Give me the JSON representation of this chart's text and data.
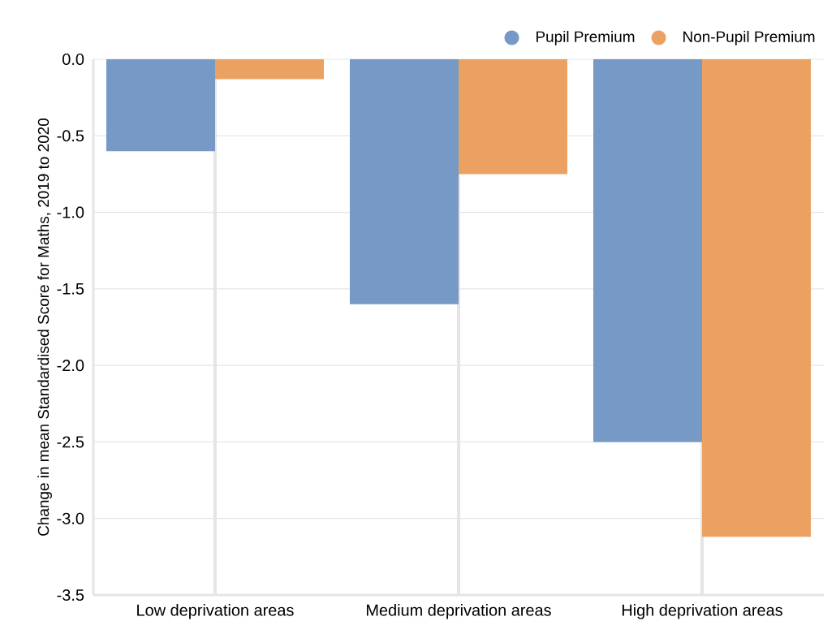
{
  "chart_data": {
    "type": "bar",
    "ylabel": "Change in mean Standardised Score for Maths, 2019 to 2020",
    "categories": [
      "Low deprivation areas",
      "Medium deprivation areas",
      "High deprivation areas"
    ],
    "series": [
      {
        "name": "Pupil Premium",
        "color": "#7799c6",
        "values": [
          -0.6,
          -1.6,
          -2.5
        ]
      },
      {
        "name": "Non-Pupil Premium",
        "color": "#eba162",
        "values": [
          -0.13,
          -0.75,
          -3.12
        ]
      }
    ],
    "ylim": [
      -3.5,
      0
    ],
    "yticks": [
      {
        "value": -3.5,
        "label": "-3.5"
      },
      {
        "value": -3.0,
        "label": "-3.0"
      },
      {
        "value": -2.5,
        "label": "-2.5"
      },
      {
        "value": -2.0,
        "label": "-2.0"
      },
      {
        "value": -1.5,
        "label": "-1.5"
      },
      {
        "value": -1.0,
        "label": "-1.0"
      },
      {
        "value": -0.5,
        "label": "-0.5"
      },
      {
        "value": 0,
        "label": "0.0"
      }
    ],
    "grid": true,
    "legend": "top right"
  }
}
